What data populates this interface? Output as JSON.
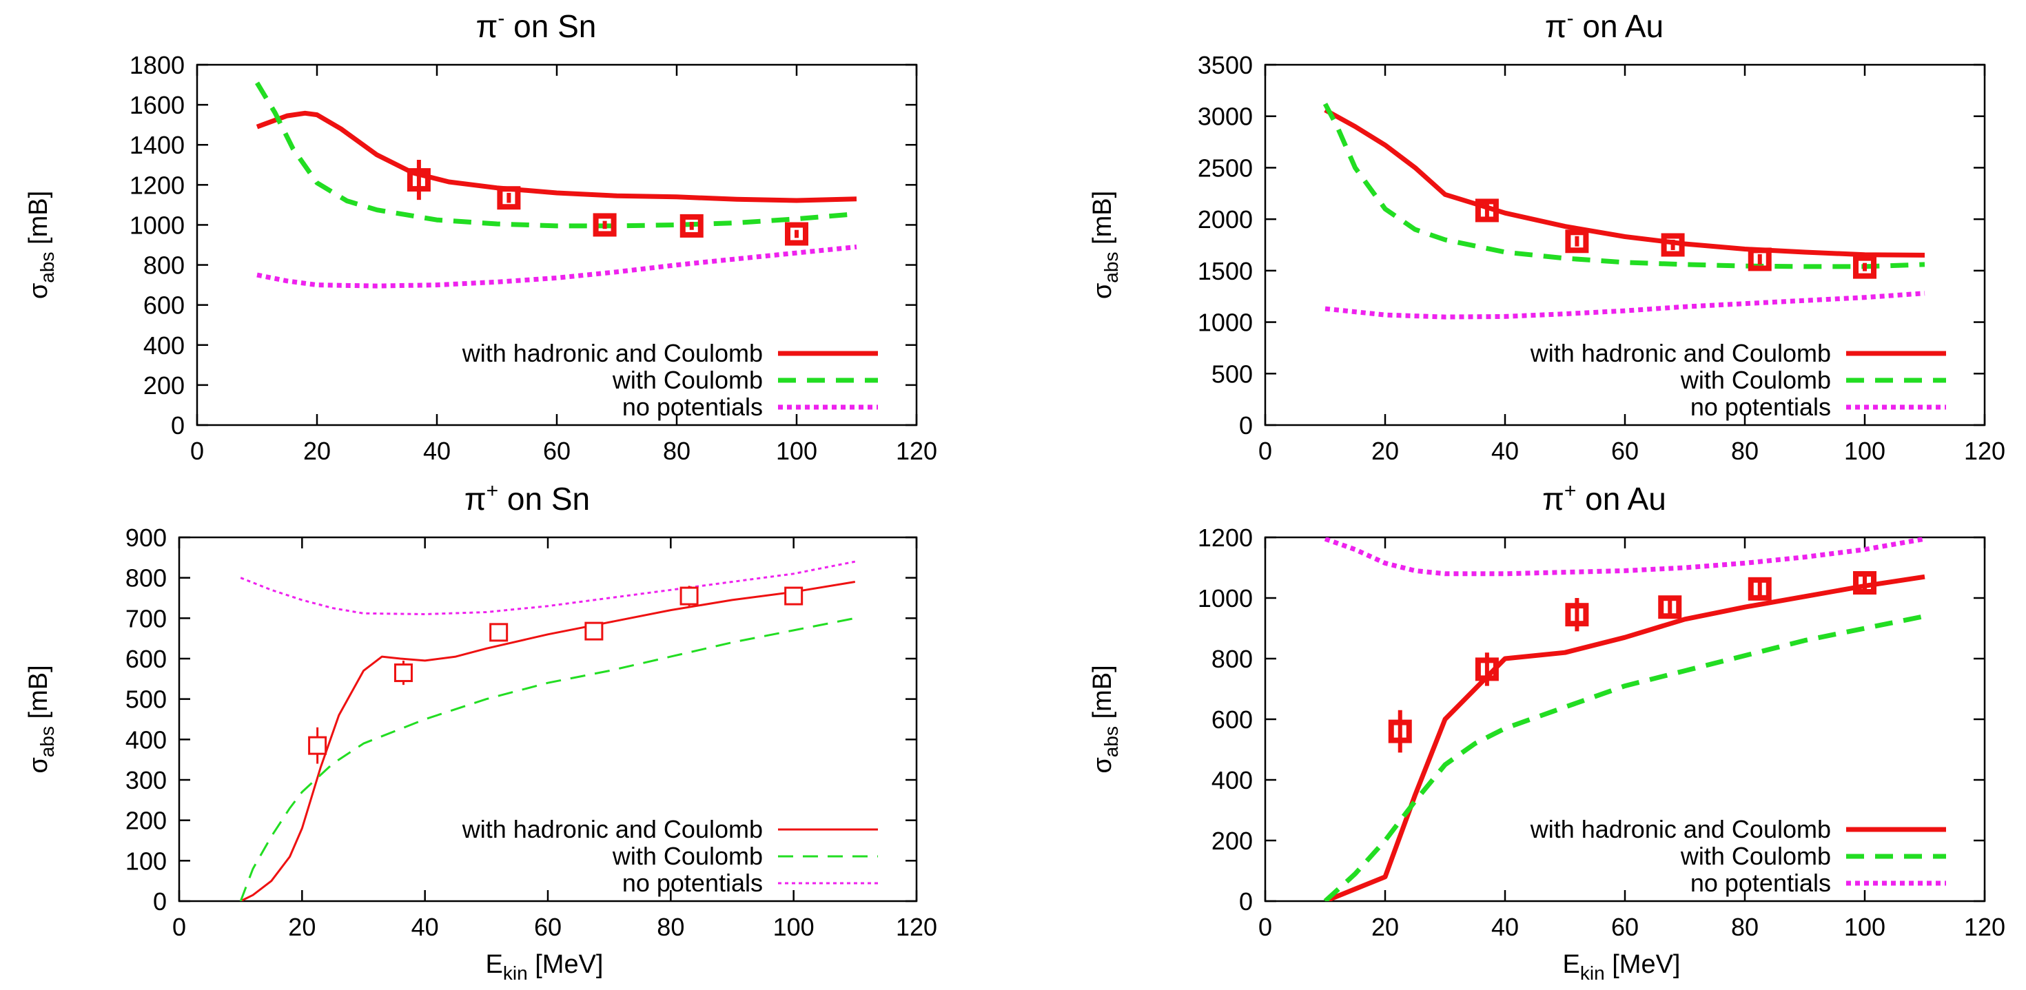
{
  "colors": {
    "hadronic": "#ee1111",
    "coulomb": "#22dd22",
    "nopot": "#ee22ee",
    "data": "#ee1111",
    "axis": "#000000"
  },
  "chart_data": [
    {
      "id": "pim_sn",
      "type": "line",
      "title_prefix": "π",
      "title_sup": "-",
      "title_suffix": " on Sn",
      "ylabel_main": "σ",
      "ylabel_sub": "abs",
      "ylabel_unit": " [mB]",
      "xlabel_main": "",
      "xlabel_sub": "",
      "xlabel_unit": "",
      "xlim": [
        0,
        120
      ],
      "ylim": [
        0,
        1800
      ],
      "xticks": [
        0,
        20,
        40,
        60,
        80,
        100,
        120
      ],
      "yticks": [
        0,
        200,
        400,
        600,
        800,
        1000,
        1200,
        1400,
        1600,
        1800
      ],
      "thick": true,
      "marker": "filled",
      "legend_position": "bottom-right",
      "series": [
        {
          "name": "with hadronic and Coulomb",
          "style": "solid",
          "color_key": "hadronic",
          "x": [
            10,
            15,
            18,
            20,
            24,
            30,
            36,
            42,
            50,
            60,
            70,
            80,
            90,
            100,
            110
          ],
          "y": [
            1490,
            1545,
            1558,
            1550,
            1480,
            1350,
            1260,
            1215,
            1185,
            1160,
            1145,
            1140,
            1128,
            1122,
            1130
          ]
        },
        {
          "name": "with Coulomb",
          "style": "dashed",
          "color_key": "coulomb",
          "x": [
            10,
            13,
            16,
            20,
            25,
            30,
            40,
            50,
            60,
            70,
            80,
            90,
            100,
            110
          ],
          "y": [
            1710,
            1560,
            1380,
            1210,
            1120,
            1075,
            1025,
            1005,
            995,
            995,
            1000,
            1010,
            1030,
            1055
          ]
        },
        {
          "name": "no potentials",
          "style": "dotted",
          "color_key": "nopot",
          "x": [
            10,
            15,
            20,
            30,
            40,
            50,
            60,
            70,
            80,
            90,
            100,
            110
          ],
          "y": [
            750,
            720,
            700,
            695,
            700,
            715,
            735,
            765,
            800,
            830,
            860,
            890
          ]
        }
      ],
      "points": [
        {
          "x": 37,
          "y": 1225,
          "err": 100
        },
        {
          "x": 52,
          "y": 1135,
          "err": 25
        },
        {
          "x": 68,
          "y": 1000,
          "err": 20
        },
        {
          "x": 82.5,
          "y": 995,
          "err": 20
        },
        {
          "x": 100,
          "y": 955,
          "err": 20
        }
      ]
    },
    {
      "id": "pim_au",
      "type": "line",
      "title_prefix": "π",
      "title_sup": "-",
      "title_suffix": " on Au",
      "ylabel_main": "σ",
      "ylabel_sub": "abs",
      "ylabel_unit": " [mB]",
      "xlabel_main": "",
      "xlabel_sub": "",
      "xlabel_unit": "",
      "xlim": [
        0,
        120
      ],
      "ylim": [
        0,
        3500
      ],
      "xticks": [
        0,
        20,
        40,
        60,
        80,
        100,
        120
      ],
      "yticks": [
        0,
        500,
        1000,
        1500,
        2000,
        2500,
        3000,
        3500
      ],
      "thick": true,
      "marker": "filled",
      "legend_position": "bottom-right",
      "series": [
        {
          "name": "with hadronic and Coulomb",
          "style": "solid",
          "color_key": "hadronic",
          "x": [
            10,
            15,
            20,
            25,
            30,
            35,
            40,
            50,
            60,
            70,
            80,
            90,
            100,
            110
          ],
          "y": [
            3060,
            2900,
            2720,
            2500,
            2240,
            2150,
            2060,
            1930,
            1830,
            1760,
            1710,
            1680,
            1655,
            1650
          ]
        },
        {
          "name": "with Coulomb",
          "style": "dashed",
          "color_key": "coulomb",
          "x": [
            10,
            12,
            15,
            20,
            25,
            30,
            40,
            50,
            60,
            70,
            80,
            90,
            100,
            110
          ],
          "y": [
            3120,
            2900,
            2500,
            2100,
            1900,
            1800,
            1680,
            1620,
            1580,
            1560,
            1545,
            1540,
            1540,
            1560
          ]
        },
        {
          "name": "no potentials",
          "style": "dotted",
          "color_key": "nopot",
          "x": [
            10,
            20,
            30,
            40,
            50,
            60,
            70,
            80,
            90,
            100,
            110
          ],
          "y": [
            1130,
            1070,
            1050,
            1055,
            1080,
            1110,
            1150,
            1180,
            1210,
            1240,
            1280
          ]
        }
      ],
      "points": [
        {
          "x": 37,
          "y": 2085,
          "err": 80
        },
        {
          "x": 52,
          "y": 1785,
          "err": 50
        },
        {
          "x": 68,
          "y": 1750,
          "err": 50
        },
        {
          "x": 82.5,
          "y": 1610,
          "err": 50
        },
        {
          "x": 100,
          "y": 1535,
          "err": 40
        }
      ]
    },
    {
      "id": "pip_sn",
      "type": "line",
      "title_prefix": "π",
      "title_sup": "+",
      "title_suffix": " on Sn",
      "ylabel_main": "σ",
      "ylabel_sub": "abs",
      "ylabel_unit": " [mB]",
      "xlabel_main": "E",
      "xlabel_sub": "kin",
      "xlabel_unit": " [MeV]",
      "xlim": [
        0,
        120
      ],
      "ylim": [
        0,
        900
      ],
      "xticks": [
        0,
        20,
        40,
        60,
        80,
        100,
        120
      ],
      "yticks": [
        0,
        100,
        200,
        300,
        400,
        500,
        600,
        700,
        800,
        900
      ],
      "thick": false,
      "marker": "open",
      "legend_position": "bottom-right",
      "series": [
        {
          "name": "with hadronic and Coulomb",
          "style": "solid",
          "color_key": "hadronic",
          "x": [
            10,
            12,
            15,
            18,
            20,
            23,
            26,
            30,
            33,
            36,
            40,
            45,
            50,
            60,
            70,
            80,
            90,
            100,
            110
          ],
          "y": [
            0,
            15,
            50,
            110,
            180,
            330,
            460,
            570,
            605,
            600,
            595,
            605,
            625,
            660,
            690,
            720,
            745,
            765,
            790
          ]
        },
        {
          "name": "with Coulomb",
          "style": "dashed",
          "color_key": "coulomb",
          "x": [
            10,
            12,
            15,
            18,
            20,
            25,
            30,
            40,
            50,
            60,
            70,
            80,
            90,
            100,
            110
          ],
          "y": [
            0,
            80,
            160,
            230,
            270,
            340,
            390,
            450,
            500,
            540,
            570,
            605,
            640,
            670,
            700
          ]
        },
        {
          "name": "no potentials",
          "style": "dotted",
          "color_key": "nopot",
          "x": [
            10,
            15,
            20,
            25,
            30,
            40,
            50,
            60,
            70,
            80,
            90,
            100,
            110
          ],
          "y": [
            800,
            770,
            745,
            725,
            712,
            710,
            715,
            730,
            750,
            770,
            790,
            810,
            840
          ]
        }
      ],
      "points": [
        {
          "x": 22.5,
          "y": 385,
          "err": 45
        },
        {
          "x": 36.5,
          "y": 565,
          "err": 30
        },
        {
          "x": 52,
          "y": 665,
          "err": 20
        },
        {
          "x": 67.5,
          "y": 668,
          "err": 20
        },
        {
          "x": 83,
          "y": 755,
          "err": 25
        },
        {
          "x": 100,
          "y": 755,
          "err": 20
        }
      ]
    },
    {
      "id": "pip_au",
      "type": "line",
      "title_prefix": "π",
      "title_sup": "+",
      "title_suffix": " on Au",
      "ylabel_main": "σ",
      "ylabel_sub": "abs",
      "ylabel_unit": " [mB]",
      "xlabel_main": "E",
      "xlabel_sub": "kin",
      "xlabel_unit": " [MeV]",
      "xlim": [
        0,
        120
      ],
      "ylim": [
        0,
        1200
      ],
      "xticks": [
        0,
        20,
        40,
        60,
        80,
        100,
        120
      ],
      "yticks": [
        0,
        200,
        400,
        600,
        800,
        1000,
        1200
      ],
      "thick": true,
      "marker": "filled",
      "legend_position": "bottom-right",
      "series": [
        {
          "name": "with hadronic and Coulomb",
          "style": "solid",
          "color_key": "hadronic",
          "x": [
            10,
            15,
            20,
            25,
            30,
            35,
            40,
            50,
            60,
            70,
            80,
            90,
            100,
            110
          ],
          "y": [
            0,
            40,
            80,
            350,
            600,
            700,
            800,
            820,
            870,
            930,
            970,
            1005,
            1040,
            1070
          ]
        },
        {
          "name": "with Coulomb",
          "style": "dashed",
          "color_key": "coulomb",
          "x": [
            10,
            15,
            20,
            25,
            30,
            35,
            40,
            50,
            60,
            70,
            80,
            90,
            100,
            110
          ],
          "y": [
            0,
            90,
            200,
            330,
            450,
            520,
            570,
            640,
            710,
            760,
            810,
            860,
            900,
            940
          ]
        },
        {
          "name": "no potentials",
          "style": "dotted",
          "color_key": "nopot",
          "x": [
            10,
            15,
            20,
            25,
            30,
            40,
            50,
            60,
            70,
            80,
            90,
            100,
            110
          ],
          "y": [
            1195,
            1160,
            1115,
            1090,
            1080,
            1080,
            1085,
            1090,
            1100,
            1115,
            1135,
            1160,
            1195
          ]
        }
      ],
      "points": [
        {
          "x": 22.5,
          "y": 560,
          "err": 70
        },
        {
          "x": 37,
          "y": 765,
          "err": 55
        },
        {
          "x": 52,
          "y": 945,
          "err": 55
        },
        {
          "x": 67.5,
          "y": 970,
          "err": 30
        },
        {
          "x": 82.5,
          "y": 1030,
          "err": 30
        },
        {
          "x": 100,
          "y": 1050,
          "err": 25
        }
      ]
    }
  ]
}
